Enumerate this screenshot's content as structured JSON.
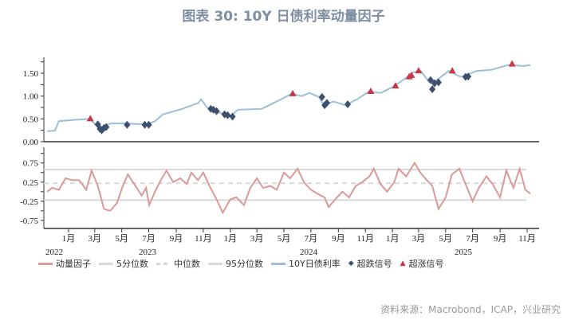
{
  "title": "图表 30: 10Y 日债利率动量因子",
  "source": "资料来源：Macrobond，ICAP，兴业研究",
  "colors": {
    "momentum": "#d99a98",
    "rate": "#9dbfdc",
    "down": "#3d4f6e",
    "up": "#c9364a",
    "bands": "#d8d8d8"
  },
  "legend": [
    {
      "label": "动量因子",
      "style": "line",
      "color": "#d99a98"
    },
    {
      "label": "5分位数",
      "style": "line",
      "color": "#d8d8d8"
    },
    {
      "label": "中位数",
      "style": "dash",
      "color": "#d8d8d8"
    },
    {
      "label": "95分位数",
      "style": "line",
      "color": "#d8d8d8"
    },
    {
      "label": "10Y日债利率",
      "style": "line",
      "color": "#9dbfdc"
    },
    {
      "label": "超跌信号",
      "style": "diamond",
      "color": "#3d4f6e"
    },
    {
      "label": "超涨信号",
      "style": "triangle",
      "color": "#c9364a"
    }
  ],
  "chart_data": {
    "type": "line",
    "x_ticks": [
      "1月",
      "3月",
      "5月",
      "7月",
      "9月",
      "11月",
      "1月",
      "3月",
      "5月",
      "7月",
      "9月",
      "11月",
      "1月",
      "3月",
      "5月",
      "7月",
      "9月",
      "11月"
    ],
    "x_tick_dates": [
      "2023-01-01",
      "2023-03-01",
      "2023-05-01",
      "2023-07-01",
      "2023-09-01",
      "2023-11-01",
      "2024-01-01",
      "2024-03-01",
      "2024-05-01",
      "2024-07-01",
      "2024-09-01",
      "2024-11-01",
      "2025-01-01",
      "2025-03-01",
      "2025-05-01",
      "2025-07-01",
      "2025-09-01",
      "2025-11-01"
    ],
    "year_labels": [
      "2022",
      "2023",
      "2024",
      "2025"
    ],
    "panels": [
      {
        "name": "top",
        "ylim": [
          0,
          1.85
        ],
        "y_ticks": [
          "0.00",
          "0.50",
          "1.00",
          "1.50"
        ],
        "y_tick_values": [
          0,
          0.5,
          1,
          1.5
        ],
        "rate": {
          "name": "10Y日债利率",
          "points": [
            [
              "2022-11-14",
              0.23
            ],
            [
              "2022-12-01",
              0.24
            ],
            [
              "2022-12-10",
              0.45
            ],
            [
              "2023-01-16",
              0.48
            ],
            [
              "2023-02-18",
              0.5
            ],
            [
              "2023-03-10",
              0.3
            ],
            [
              "2023-04-06",
              0.4
            ],
            [
              "2023-05-12",
              0.4
            ],
            [
              "2023-06-27",
              0.38
            ],
            [
              "2023-07-15",
              0.45
            ],
            [
              "2023-08-02",
              0.6
            ],
            [
              "2023-09-15",
              0.72
            ],
            [
              "2023-10-21",
              0.85
            ],
            [
              "2023-10-27",
              0.93
            ],
            [
              "2023-11-12",
              0.72
            ],
            [
              "2023-12-05",
              0.65
            ],
            [
              "2024-01-01",
              0.55
            ],
            [
              "2024-01-18",
              0.7
            ],
            [
              "2024-03-12",
              0.72
            ],
            [
              "2024-04-08",
              0.85
            ],
            [
              "2024-05-19",
              1.05
            ],
            [
              "2024-06-10",
              1.0
            ],
            [
              "2024-06-28",
              1.07
            ],
            [
              "2024-07-19",
              0.98
            ],
            [
              "2024-07-30",
              0.8
            ],
            [
              "2024-08-21",
              0.88
            ],
            [
              "2024-09-17",
              0.8
            ],
            [
              "2024-10-13",
              0.93
            ],
            [
              "2024-11-09",
              1.1
            ],
            [
              "2024-12-06",
              1.07
            ],
            [
              "2025-01-02",
              1.2
            ],
            [
              "2025-01-29",
              1.38
            ],
            [
              "2025-02-16",
              1.52
            ],
            [
              "2025-03-06",
              1.55
            ],
            [
              "2025-03-24",
              1.32
            ],
            [
              "2025-04-11",
              1.35
            ],
            [
              "2025-05-08",
              1.55
            ],
            [
              "2025-06-04",
              1.42
            ],
            [
              "2025-07-10",
              1.55
            ],
            [
              "2025-08-14",
              1.58
            ],
            [
              "2025-09-19",
              1.68
            ],
            [
              "2025-10-25",
              1.66
            ],
            [
              "2025-11-08",
              1.68
            ]
          ]
        },
        "up_signals": {
          "name": "超涨信号",
          "points": [
            [
              "2023-02-19",
              0.5
            ],
            [
              "2024-05-21",
              1.05
            ],
            [
              "2024-11-13",
              1.1
            ],
            [
              "2025-01-08",
              1.22
            ],
            [
              "2025-02-08",
              1.42
            ],
            [
              "2025-02-13",
              1.45
            ],
            [
              "2025-03-01",
              1.55
            ],
            [
              "2025-05-16",
              1.55
            ],
            [
              "2025-09-28",
              1.7
            ]
          ]
        },
        "down_signals": {
          "name": "超跌信号",
          "points": [
            [
              "2023-03-08",
              0.38
            ],
            [
              "2023-03-13",
              0.28
            ],
            [
              "2023-03-17",
              0.25
            ],
            [
              "2023-03-22",
              0.3
            ],
            [
              "2023-03-27",
              0.32
            ],
            [
              "2023-05-13",
              0.37
            ],
            [
              "2023-06-22",
              0.37
            ],
            [
              "2023-07-01",
              0.37
            ],
            [
              "2023-11-18",
              0.72
            ],
            [
              "2023-11-24",
              0.7
            ],
            [
              "2023-12-01",
              0.67
            ],
            [
              "2023-12-19",
              0.6
            ],
            [
              "2023-12-26",
              0.58
            ],
            [
              "2024-01-06",
              0.55
            ],
            [
              "2024-07-26",
              0.98
            ],
            [
              "2024-08-01",
              0.8
            ],
            [
              "2024-08-06",
              0.85
            ],
            [
              "2024-09-22",
              0.82
            ],
            [
              "2025-03-28",
              1.35
            ],
            [
              "2025-04-01",
              1.15
            ],
            [
              "2025-04-06",
              1.28
            ],
            [
              "2025-04-15",
              1.3
            ],
            [
              "2025-06-15",
              1.42
            ],
            [
              "2025-06-21",
              1.43
            ]
          ]
        }
      },
      {
        "name": "bottom",
        "ylim": [
          -0.96,
          1.16
        ],
        "y_ticks": [
          "0.75",
          "0.25",
          "-0.25",
          "-0.75"
        ],
        "y_tick_values": [
          0.75,
          0.25,
          -0.25,
          -0.75
        ],
        "p95": 0.58,
        "median": 0.22,
        "p5": -0.22,
        "momentum": {
          "name": "动量因子",
          "points": [
            [
              "2022-11-14",
              0.0
            ],
            [
              "2022-11-25",
              0.1
            ],
            [
              "2022-12-10",
              0.05
            ],
            [
              "2022-12-25",
              0.35
            ],
            [
              "2023-01-10",
              0.3
            ],
            [
              "2023-01-25",
              0.3
            ],
            [
              "2023-02-10",
              0.05
            ],
            [
              "2023-02-22",
              0.55
            ],
            [
              "2023-03-08",
              0.15
            ],
            [
              "2023-03-22",
              -0.45
            ],
            [
              "2023-04-05",
              -0.5
            ],
            [
              "2023-04-20",
              -0.3
            ],
            [
              "2023-05-05",
              0.2
            ],
            [
              "2023-05-15",
              0.45
            ],
            [
              "2023-06-01",
              0.15
            ],
            [
              "2023-06-15",
              -0.1
            ],
            [
              "2023-06-25",
              0.1
            ],
            [
              "2023-07-02",
              -0.35
            ],
            [
              "2023-07-15",
              0.0
            ],
            [
              "2023-07-28",
              0.3
            ],
            [
              "2023-08-10",
              0.55
            ],
            [
              "2023-08-25",
              0.25
            ],
            [
              "2023-09-10",
              0.35
            ],
            [
              "2023-09-25",
              0.2
            ],
            [
              "2023-10-05",
              0.5
            ],
            [
              "2023-10-20",
              0.3
            ],
            [
              "2023-11-01",
              0.5
            ],
            [
              "2023-11-15",
              0.15
            ],
            [
              "2023-12-01",
              -0.2
            ],
            [
              "2023-12-15",
              -0.55
            ],
            [
              "2024-01-01",
              -0.2
            ],
            [
              "2024-01-15",
              -0.15
            ],
            [
              "2024-02-01",
              -0.35
            ],
            [
              "2024-02-15",
              0.1
            ],
            [
              "2024-03-01",
              0.35
            ],
            [
              "2024-03-15",
              0.1
            ],
            [
              "2024-04-01",
              0.15
            ],
            [
              "2024-04-15",
              0.05
            ],
            [
              "2024-05-01",
              0.5
            ],
            [
              "2024-05-15",
              0.35
            ],
            [
              "2024-06-01",
              0.6
            ],
            [
              "2024-06-15",
              0.25
            ],
            [
              "2024-07-01",
              0.05
            ],
            [
              "2024-07-15",
              -0.05
            ],
            [
              "2024-08-01",
              -0.15
            ],
            [
              "2024-08-10",
              -0.4
            ],
            [
              "2024-08-25",
              -0.2
            ],
            [
              "2024-09-10",
              0.0
            ],
            [
              "2024-09-25",
              -0.15
            ],
            [
              "2024-10-10",
              0.15
            ],
            [
              "2024-10-25",
              0.25
            ],
            [
              "2024-11-10",
              0.4
            ],
            [
              "2024-11-20",
              0.6
            ],
            [
              "2024-12-05",
              0.2
            ],
            [
              "2024-12-20",
              0.0
            ],
            [
              "2025-01-05",
              0.25
            ],
            [
              "2025-01-15",
              0.6
            ],
            [
              "2025-02-01",
              0.4
            ],
            [
              "2025-02-20",
              0.75
            ],
            [
              "2025-03-05",
              0.5
            ],
            [
              "2025-03-20",
              0.3
            ],
            [
              "2025-04-01",
              0.15
            ],
            [
              "2025-04-15",
              -0.45
            ],
            [
              "2025-05-01",
              -0.15
            ],
            [
              "2025-05-15",
              0.45
            ],
            [
              "2025-06-01",
              0.6
            ],
            [
              "2025-06-15",
              0.2
            ],
            [
              "2025-07-01",
              -0.25
            ],
            [
              "2025-07-15",
              0.1
            ],
            [
              "2025-08-01",
              0.4
            ],
            [
              "2025-08-15",
              0.2
            ],
            [
              "2025-09-01",
              -0.15
            ],
            [
              "2025-09-15",
              0.55
            ],
            [
              "2025-10-01",
              0.1
            ],
            [
              "2025-10-15",
              0.6
            ],
            [
              "2025-10-28",
              0.05
            ],
            [
              "2025-11-08",
              -0.05
            ]
          ]
        }
      }
    ]
  }
}
